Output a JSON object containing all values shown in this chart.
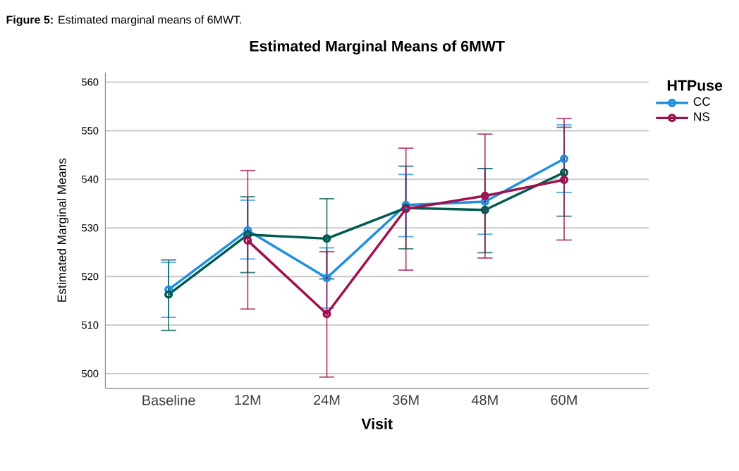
{
  "chart_data": {
    "type": "line",
    "title": "Estimated Marginal Means of 6MWT",
    "xlabel": "Visit",
    "ylabel": "Estimated Marginal Means",
    "legend_title": "HTPuse",
    "annotations": [
      "**Figure 5:** Estimated marginal means of 6MWT."
    ],
    "categories": [
      "Baseline",
      "12M",
      "24M",
      "36M",
      "48M",
      "60M"
    ],
    "series": [
      {
        "name": "CC",
        "color": "#1f8fe0",
        "values": [
          517.3,
          529.5,
          519.7,
          534.7,
          535.4,
          544.2
        ],
        "errors": [
          [
            511.6,
            522.9
          ],
          [
            523.6,
            535.7
          ],
          [
            513.5,
            525.9
          ],
          [
            528.2,
            541.0
          ],
          [
            528.7,
            542.2
          ],
          [
            537.3,
            551.2
          ]
        ]
      },
      {
        "color": "#005a50",
        "values": [
          516.3,
          528.6,
          527.8,
          534.1,
          533.7,
          541.4
        ],
        "errors": [
          [
            508.9,
            523.4
          ],
          [
            520.8,
            536.4
          ],
          [
            519.5,
            536.0
          ],
          [
            525.7,
            542.7
          ],
          [
            524.9,
            542.2
          ],
          [
            532.4,
            550.7
          ]
        ]
      },
      {
        "name": "NS",
        "color": "#a0104f",
        "values": [
          null,
          527.4,
          512.3,
          533.9,
          536.6,
          539.9
        ],
        "errors": [
          null,
          [
            513.3,
            541.8
          ],
          [
            499.3,
            525.1
          ],
          [
            521.3,
            546.4
          ],
          [
            523.8,
            549.3
          ],
          [
            527.5,
            552.5
          ]
        ]
      }
    ],
    "ylim": [
      497,
      562
    ],
    "yticks": [
      500,
      510,
      520,
      530,
      540,
      550,
      560
    ],
    "grid": "y",
    "legend": "top right",
    "marker": "circle",
    "line_style": "solid"
  }
}
